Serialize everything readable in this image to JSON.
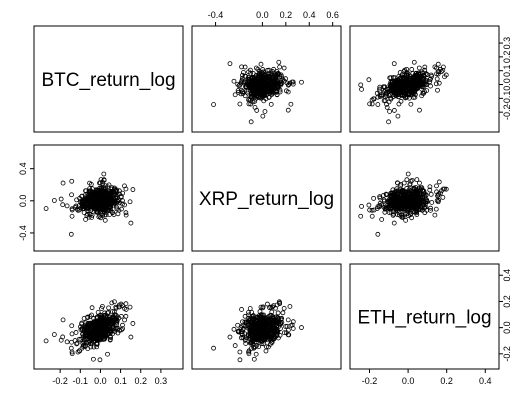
{
  "chart_data": {
    "type": "scatter",
    "layout": "pairs-matrix",
    "variables": [
      "BTC_return_log",
      "XRP_return_log",
      "ETH_return_log"
    ],
    "axes": {
      "BTC_return_log": {
        "lim": [
          -0.3,
          0.38
        ],
        "ticks": [
          "-0.2",
          "-0.1",
          "0.0",
          "0.1",
          "0.2",
          "0.3"
        ],
        "tick_values": [
          -0.2,
          -0.1,
          0.0,
          0.1,
          0.2,
          0.3
        ]
      },
      "XRP_return_log": {
        "lim": [
          -0.55,
          0.62
        ],
        "ticks": [
          "-0.4",
          "0.0",
          "0.2",
          "0.4",
          "0.6"
        ],
        "tick_values": [
          -0.4,
          0.0,
          0.2,
          0.4,
          0.6
        ]
      },
      "ETH_return_log": {
        "lim": [
          -0.27,
          0.44
        ],
        "ticks": [
          "-0.2",
          "0.0",
          "0.2",
          "0.4"
        ],
        "tick_values": [
          -0.2,
          0.0,
          0.2,
          0.4
        ]
      }
    },
    "x_axis_rows": {
      "top": "XRP_return_log",
      "bottom_left": "BTC_return_log",
      "bottom_right": "ETH_return_log"
    },
    "y_axis_cols": {
      "left": "XRP_return_log"
    },
    "pairs": [
      {
        "x": "BTC_return_log",
        "y": "XRP_return_log",
        "correlation_estimate": 0.25,
        "n_points": 520
      },
      {
        "x": "BTC_return_log",
        "y": "ETH_return_log",
        "correlation_estimate": 0.55,
        "n_points": 520
      },
      {
        "x": "XRP_return_log",
        "y": "ETH_return_log",
        "correlation_estimate": 0.2,
        "n_points": 520
      }
    ],
    "spread_sd": {
      "BTC_return_log": 0.05,
      "XRP_return_log": 0.09,
      "ETH_return_log": 0.065
    },
    "marker": "open-circle",
    "grid": false
  }
}
